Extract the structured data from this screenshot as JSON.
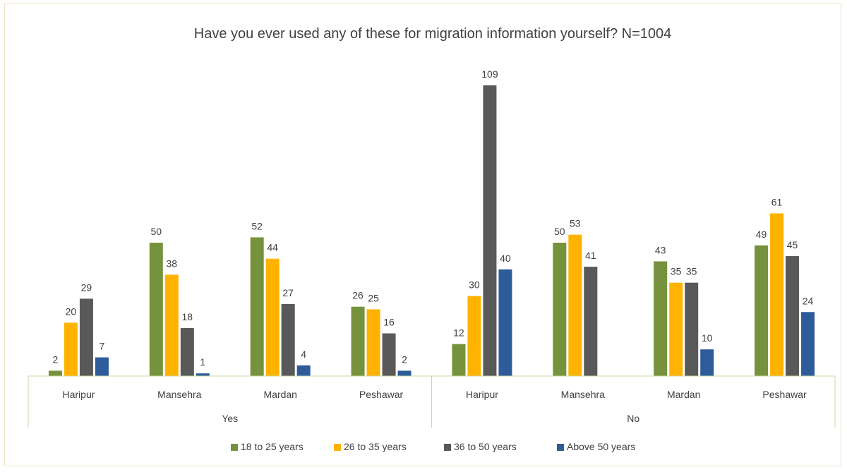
{
  "chart_data": {
    "type": "bar",
    "title": "Have you ever used any of these for migration information yourself? N=1004",
    "groups": [
      {
        "label": "Yes",
        "categories": [
          "Haripur",
          "Mansehra",
          "Mardan",
          "Peshawar"
        ]
      },
      {
        "label": "No",
        "categories": [
          "Haripur",
          "Mansehra",
          "Mardan",
          "Peshawar"
        ]
      }
    ],
    "series": [
      {
        "name": "18 to 25 years",
        "color": "#76923c",
        "values": [
          2,
          50,
          52,
          26,
          12,
          50,
          43,
          49
        ]
      },
      {
        "name": "26 to 35 years",
        "color": "#ffb300",
        "values": [
          20,
          38,
          44,
          25,
          30,
          53,
          35,
          61
        ]
      },
      {
        "name": "36 to 50 years",
        "color": "#595959",
        "values": [
          29,
          18,
          27,
          16,
          109,
          41,
          35,
          45
        ]
      },
      {
        "name": "Above 50 years",
        "color": "#2e5c9a",
        "values": [
          7,
          1,
          4,
          2,
          40,
          null,
          10,
          24
        ]
      }
    ],
    "ylim": [
      0,
      114
    ],
    "grid": false,
    "legend": "bottom",
    "axis_color": "#c5d9a8"
  }
}
